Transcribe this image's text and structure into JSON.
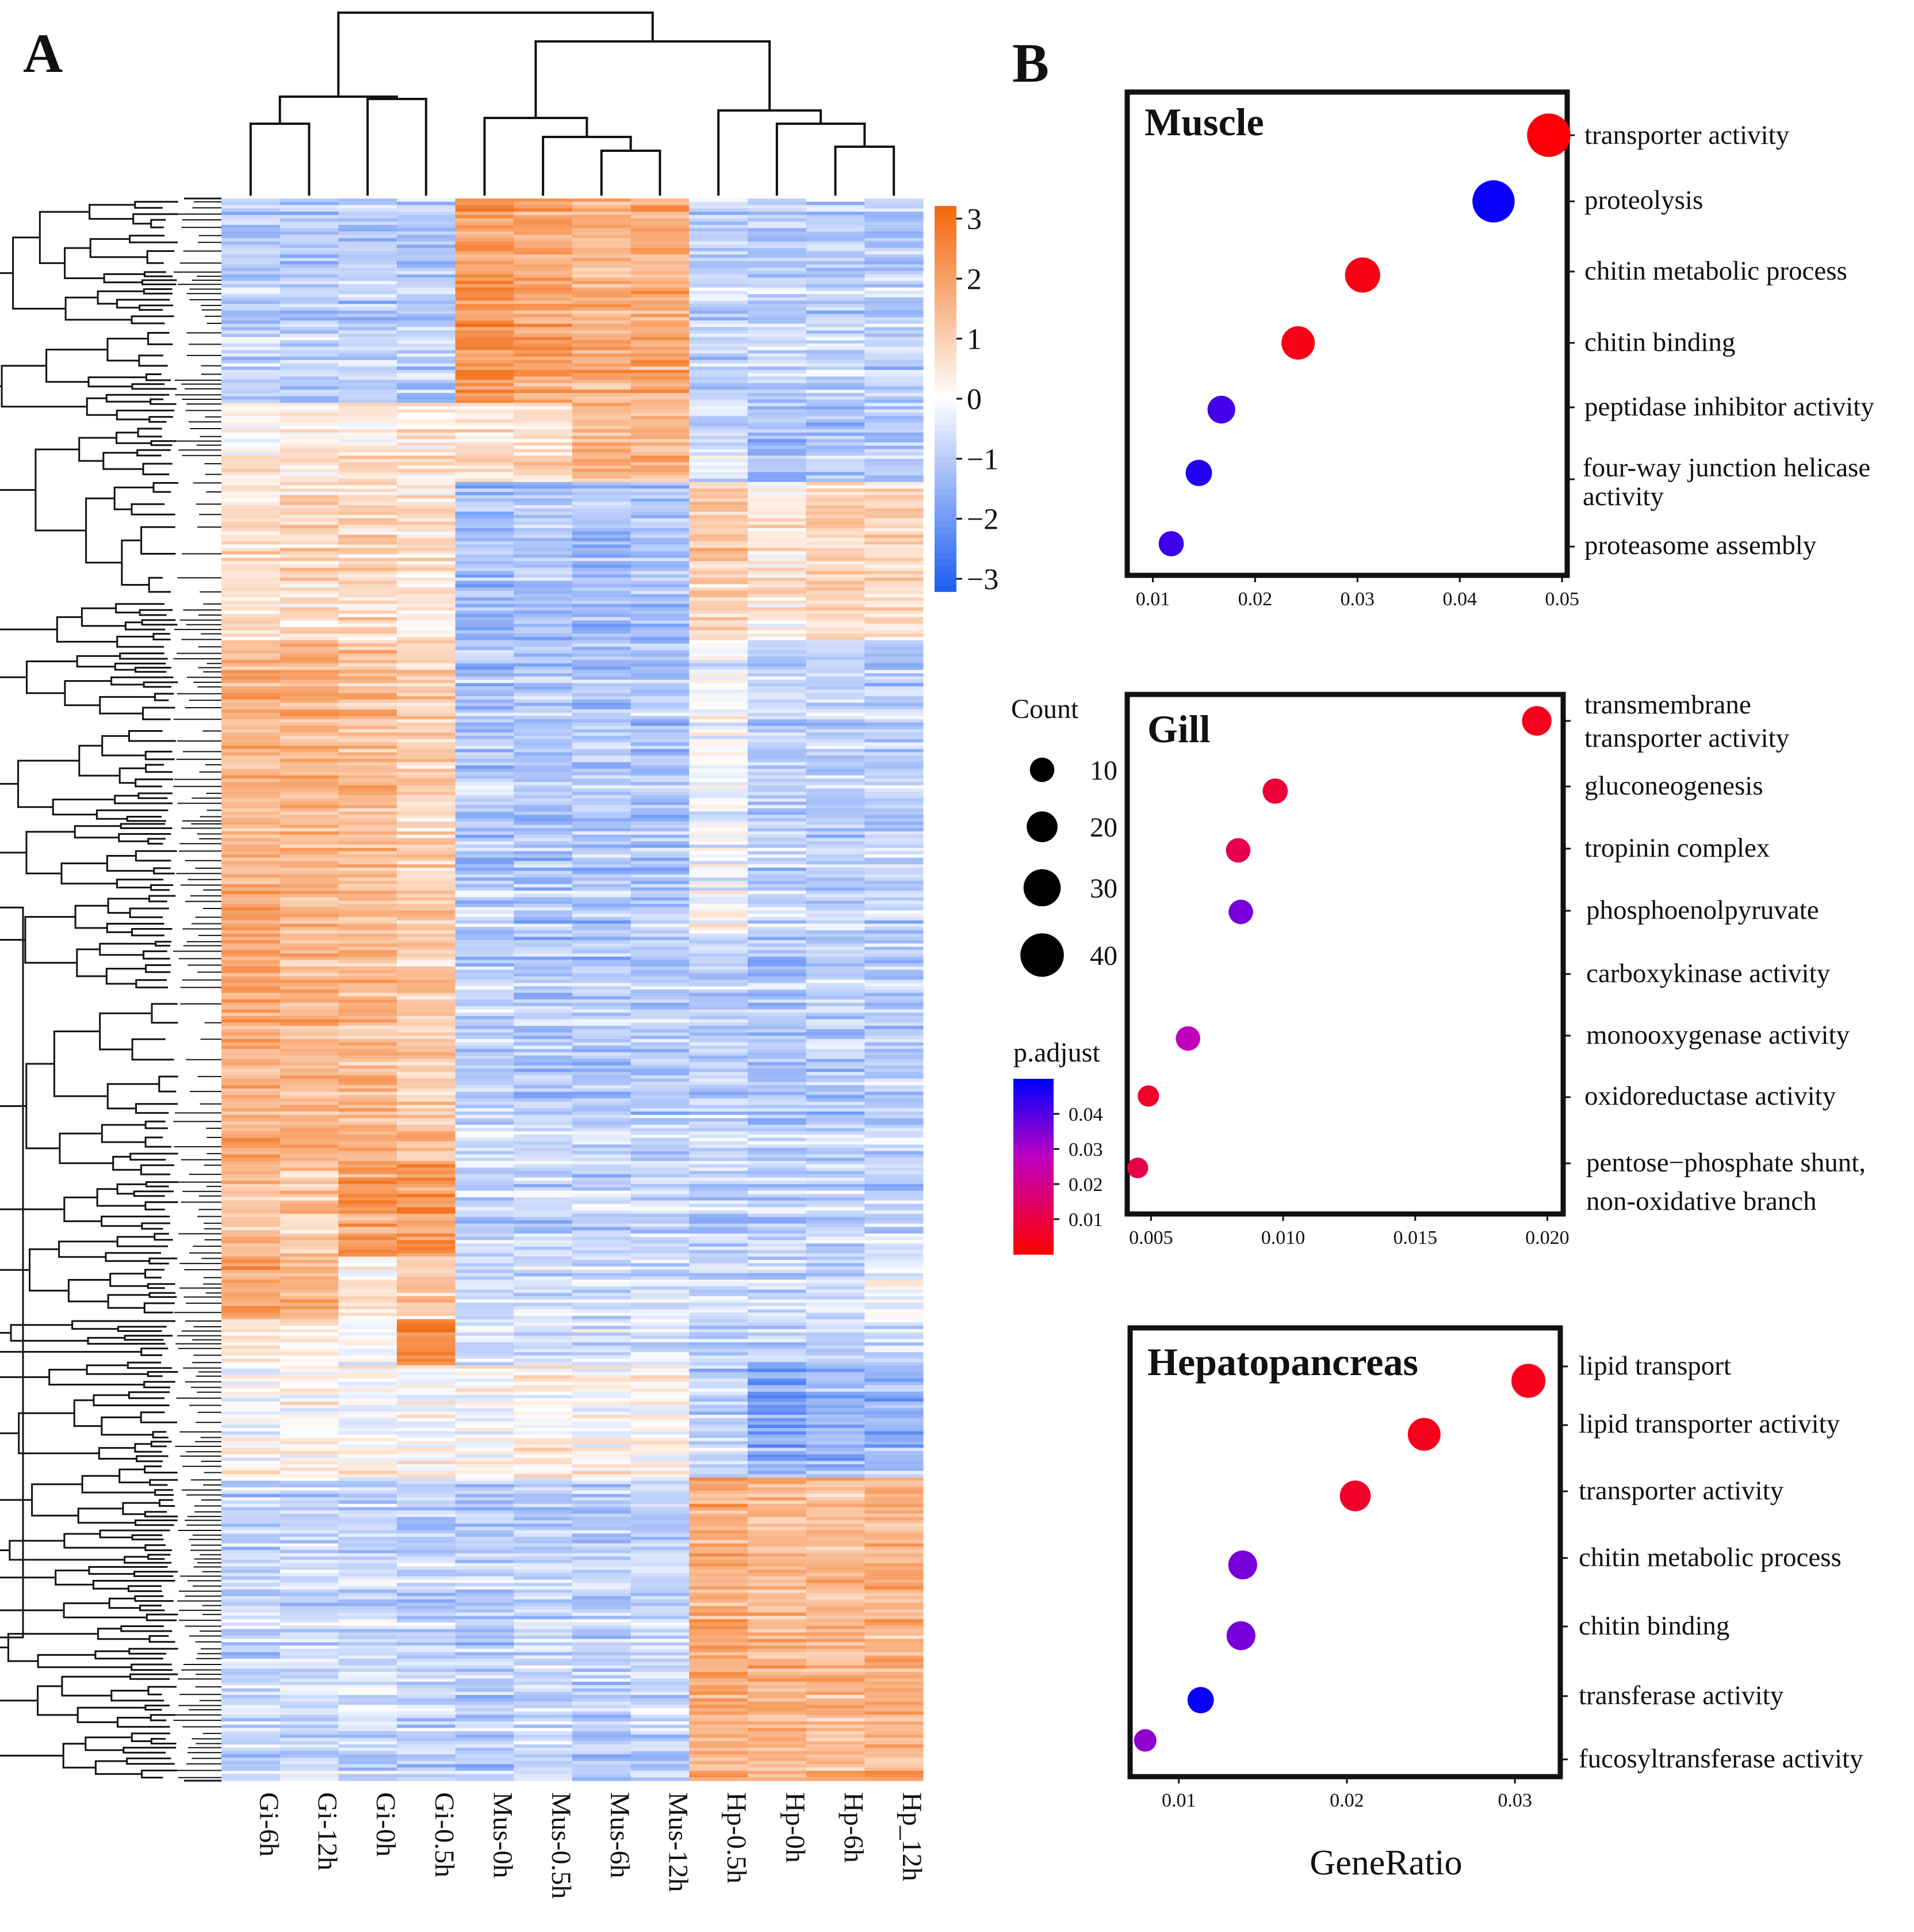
{
  "panels": {
    "a": "A",
    "b": "B"
  },
  "chart_data": [
    {
      "type": "heatmap",
      "title": "",
      "columns": [
        "Gi-6h",
        "Gi-12h",
        "Gi-0h",
        "Gi-0.5h",
        "Mus-0h",
        "Mus-0.5h",
        "Mus-6h",
        "Mus-12h",
        "Hp-0.5h",
        "Hp-0h",
        "Hp-6h",
        "Hp_12h"
      ],
      "colorbar": {
        "range": [
          -3,
          3
        ],
        "ticks": [
          "3",
          "2",
          "1",
          "0",
          "−1",
          "−2",
          "−3"
        ],
        "low_color": "#1f5ff0",
        "mid_color": "#ffffff",
        "high_color": "#f46a0f"
      },
      "row_blocks": [
        {
          "rows_fraction": 0.13,
          "values": [
            -0.9,
            -0.9,
            -0.9,
            -0.9,
            2.1,
            1.8,
            1.6,
            1.7,
            -0.8,
            -0.8,
            -0.8,
            -0.8
          ]
        },
        {
          "rows_fraction": 0.05,
          "values": [
            0.4,
            0.5,
            0.6,
            0.5,
            0.7,
            0.8,
            1.5,
            1.5,
            -0.5,
            -1.2,
            -1.0,
            -0.8
          ]
        },
        {
          "rows_fraction": 0.1,
          "values": [
            0.6,
            0.6,
            0.7,
            0.5,
            -1.3,
            -1.2,
            -1.3,
            -1.2,
            0.9,
            0.4,
            0.8,
            0.7
          ]
        },
        {
          "rows_fraction": 0.19,
          "values": [
            1.6,
            1.5,
            1.3,
            1.0,
            -1.0,
            -1.0,
            -1.0,
            -1.0,
            -0.1,
            -0.8,
            -0.8,
            -0.8
          ]
        },
        {
          "rows_fraction": 0.14,
          "values": [
            1.7,
            1.5,
            1.4,
            1.1,
            -0.9,
            -0.9,
            -1.0,
            -0.9,
            -0.8,
            -1.0,
            -0.9,
            -0.9
          ]
        },
        {
          "rows_fraction": 0.06,
          "values": [
            1.2,
            1.0,
            1.9,
            1.9,
            -0.8,
            -0.8,
            -0.8,
            -0.8,
            -0.8,
            -0.9,
            -0.8,
            -0.8
          ]
        },
        {
          "rows_fraction": 0.04,
          "values": [
            1.8,
            1.6,
            0.3,
            1.0,
            -0.6,
            -0.6,
            -0.6,
            -0.6,
            -0.6,
            -0.7,
            -0.6,
            -0.2
          ]
        },
        {
          "rows_fraction": 0.03,
          "values": [
            0.7,
            0.5,
            0.2,
            2.6,
            -0.3,
            -0.4,
            -0.4,
            -0.4,
            -0.6,
            -0.7,
            -0.6,
            -0.5
          ]
        },
        {
          "rows_fraction": 0.07,
          "values": [
            0.1,
            0.2,
            0.1,
            0.1,
            0.1,
            0.3,
            0.2,
            0.2,
            -0.8,
            -1.6,
            -1.4,
            -1.3
          ]
        },
        {
          "rows_fraction": 0.19,
          "values": [
            -0.8,
            -0.7,
            -0.7,
            -0.8,
            -0.9,
            -0.8,
            -0.9,
            -0.8,
            1.6,
            1.4,
            1.3,
            1.5
          ]
        }
      ]
    },
    {
      "type": "scatter",
      "title": "Muscle",
      "xlabel": "",
      "ylabel": "",
      "xlim": [
        0.0075,
        0.0505
      ],
      "xticks": [
        "0.01",
        "0.02",
        "0.03",
        "0.04",
        "0.05"
      ],
      "terms": [
        "transporter activity",
        "proteolysis",
        "chitin metabolic process",
        "chitin binding",
        "peptidase inhibitor activity",
        "four-way junction helicase",
        "activity",
        "proteasome assembly"
      ],
      "points": [
        {
          "term": "transporter activity",
          "gene_ratio": 0.0487,
          "count": 40,
          "p_adjust": 0.001
        },
        {
          "term": "proteolysis",
          "gene_ratio": 0.0433,
          "count": 38,
          "p_adjust": 0.049
        },
        {
          "term": "chitin metabolic process",
          "gene_ratio": 0.0305,
          "count": 27,
          "p_adjust": 0.003
        },
        {
          "term": "chitin binding",
          "gene_ratio": 0.0242,
          "count": 24,
          "p_adjust": 0.003
        },
        {
          "term": "peptidase inhibitor activity",
          "gene_ratio": 0.0167,
          "count": 15,
          "p_adjust": 0.042
        },
        {
          "term": "four-way junction helicase activity",
          "gene_ratio": 0.0145,
          "count": 13,
          "p_adjust": 0.046
        },
        {
          "term": "proteasome assembly",
          "gene_ratio": 0.0118,
          "count": 11,
          "p_adjust": 0.043
        }
      ]
    },
    {
      "type": "scatter",
      "title": "Gill",
      "xlabel": "",
      "ylabel": "",
      "xlim": [
        0.0041,
        0.0206
      ],
      "xticks": [
        "0.005",
        "0.010",
        "0.015",
        "0.020"
      ],
      "terms": [
        "transmembrane",
        "transporter activity",
        "gluconeogenesis",
        "tropinin complex",
        "phosphoenolpyruvate",
        "carboxykinase activity",
        "monooxygenase activity",
        "oxidoreductase activity",
        "pentose−phosphate shunt,",
        "non-oxidative branch"
      ],
      "points": [
        {
          "term": "transmembrane transporter activity",
          "gene_ratio": 0.0196,
          "count": 18,
          "p_adjust": 0.004
        },
        {
          "term": "gluconeogenesis",
          "gene_ratio": 0.0097,
          "count": 11,
          "p_adjust": 0.008
        },
        {
          "term": "tropinin complex",
          "gene_ratio": 0.0083,
          "count": 10,
          "p_adjust": 0.011
        },
        {
          "term": "phosphoenolpyruvate carboxykinase activity",
          "gene_ratio": 0.0084,
          "count": 10,
          "p_adjust": 0.036
        },
        {
          "term": "monooxygenase activity",
          "gene_ratio": 0.0064,
          "count": 10,
          "p_adjust": 0.027
        },
        {
          "term": "oxidoreductase activity",
          "gene_ratio": 0.0049,
          "count": 5,
          "p_adjust": 0.006
        },
        {
          "term": "pentose−phosphate shunt, non-oxidative branch",
          "gene_ratio": 0.0045,
          "count": 4,
          "p_adjust": 0.01
        }
      ]
    },
    {
      "type": "scatter",
      "title": "Hepatopancreas",
      "xlabel": "GeneRatio",
      "ylabel": "",
      "xlim": [
        0.0071,
        0.0327
      ],
      "xticks": [
        "0.01",
        "0.02",
        "0.03"
      ],
      "terms": [
        "lipid transport",
        "lipid transporter activity",
        "transporter activity",
        "chitin metabolic process",
        "chitin binding",
        "transferase activity",
        "fucosyltransferase activity"
      ],
      "points": [
        {
          "term": "lipid transport",
          "gene_ratio": 0.0308,
          "count": 25,
          "p_adjust": 0.004
        },
        {
          "term": "lipid transporter activity",
          "gene_ratio": 0.0246,
          "count": 23,
          "p_adjust": 0.004
        },
        {
          "term": "transporter activity",
          "gene_ratio": 0.0205,
          "count": 20,
          "p_adjust": 0.006
        },
        {
          "term": "chitin metabolic process",
          "gene_ratio": 0.0138,
          "count": 17,
          "p_adjust": 0.036
        },
        {
          "term": "chitin binding",
          "gene_ratio": 0.0137,
          "count": 17,
          "p_adjust": 0.036
        },
        {
          "term": "transferase activity",
          "gene_ratio": 0.0113,
          "count": 13,
          "p_adjust": 0.049
        },
        {
          "term": "fucosyltransferase activity",
          "gene_ratio": 0.008,
          "count": 7,
          "p_adjust": 0.033
        }
      ]
    }
  ],
  "legends": {
    "count": {
      "title": "Count",
      "values": [
        10,
        20,
        30,
        40
      ],
      "labels": [
        "10",
        "20",
        "30",
        "40"
      ]
    },
    "padjust": {
      "title": "p.adjust",
      "range": [
        0.0,
        0.05
      ],
      "ticks": [
        "0.04",
        "0.03",
        "0.02",
        "0.01"
      ],
      "low_color": "#ff0000",
      "mid_color": "#c000c0",
      "high_color": "#0000ff"
    }
  }
}
